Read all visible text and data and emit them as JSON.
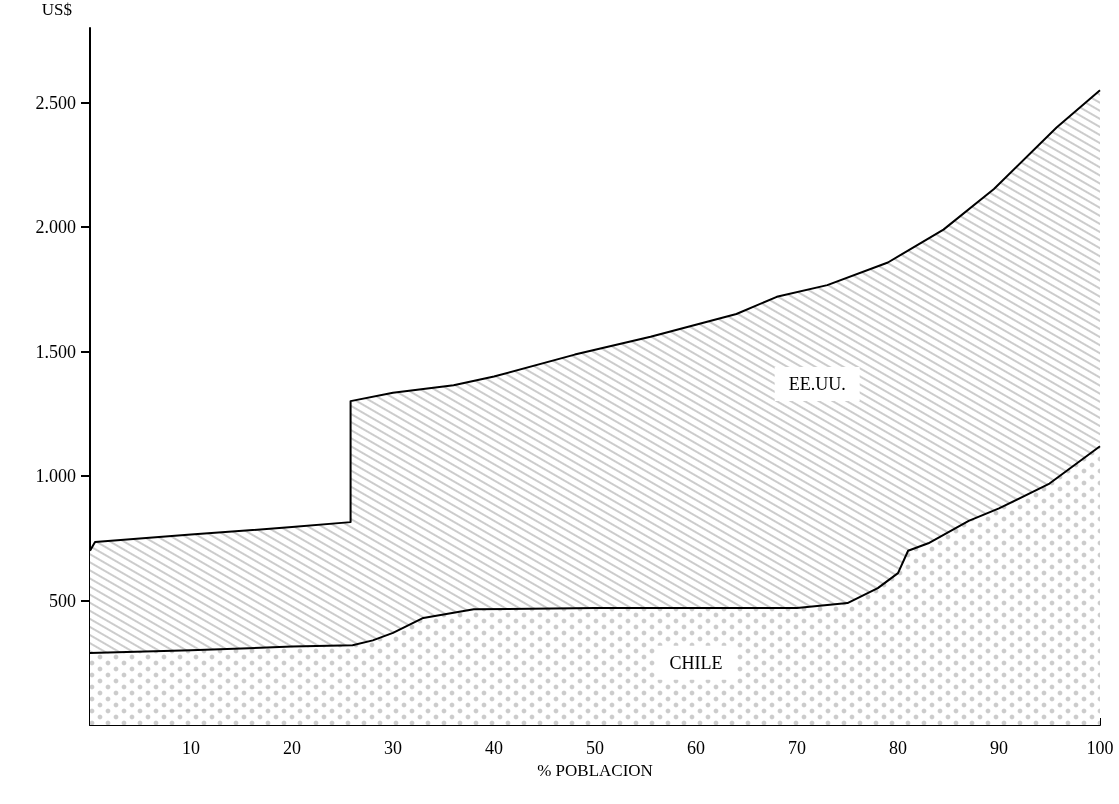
{
  "chart_data": {
    "type": "area",
    "xlabel": "% POBLACION",
    "ylabel": "US$",
    "xlim": [
      0,
      100
    ],
    "xticks": [
      10,
      20,
      30,
      40,
      50,
      60,
      70,
      80,
      90,
      100
    ],
    "ylim": [
      0,
      2800
    ],
    "yticks": [
      {
        "value": 500,
        "label": "500"
      },
      {
        "value": 1000,
        "label": "1.000"
      },
      {
        "value": 1500,
        "label": "1.500"
      },
      {
        "value": 2000,
        "label": "2.000"
      },
      {
        "value": 2500,
        "label": "2.500"
      }
    ],
    "grid": false,
    "legend": false,
    "series": [
      {
        "name": "EE.UU.",
        "color": "#000000",
        "x": [
          0,
          0.5,
          10,
          20,
          25.8,
          25.8,
          30,
          36,
          40,
          48,
          55.5,
          64,
          68,
          73,
          79,
          84.5,
          89.5,
          95.7,
          100
        ],
        "values": [
          700,
          735,
          765,
          795,
          815,
          1301,
          1335,
          1365,
          1400,
          1488,
          1560,
          1651,
          1720,
          1767,
          1858,
          1990,
          2153,
          2400,
          2550
        ]
      },
      {
        "name": "CHILE",
        "color": "#000000",
        "x": [
          0,
          10,
          20,
          26,
          28,
          30,
          33,
          38,
          50,
          60,
          70,
          75,
          78,
          80,
          81,
          83,
          87,
          90,
          95,
          100
        ],
        "values": [
          289,
          300,
          315,
          320,
          340,
          370,
          430,
          465,
          470,
          470,
          470,
          490,
          550,
          610,
          700,
          730,
          820,
          870,
          970,
          1120
        ]
      }
    ]
  }
}
